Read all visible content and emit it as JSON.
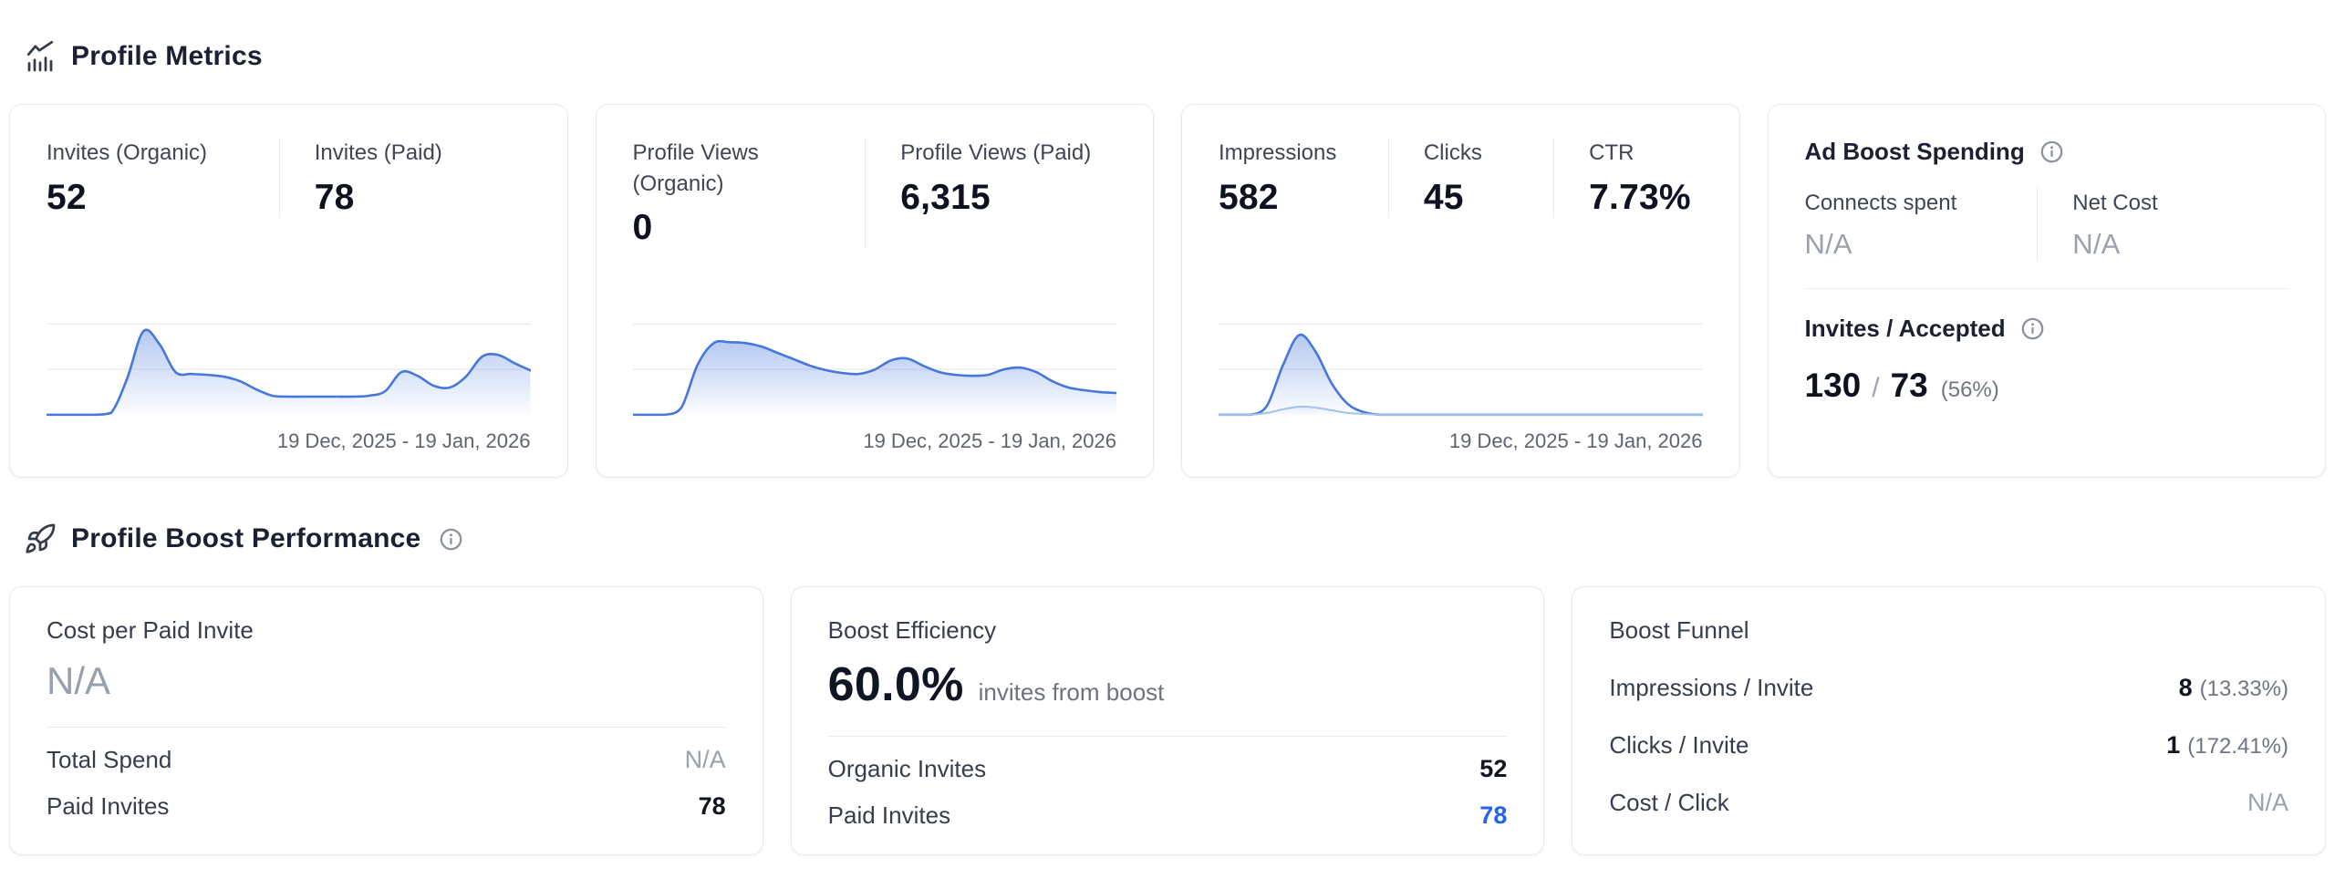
{
  "colors": {
    "accent_blue": "#2563eb",
    "spark_line": "#4677dc",
    "muted": "#9aa1ac"
  },
  "sections": {
    "profile_metrics": {
      "title": "Profile Metrics"
    },
    "boost_performance": {
      "title": "Profile Boost Performance"
    }
  },
  "cards": {
    "invites": {
      "stats": [
        {
          "label": "Invites (Organic)",
          "value": "52"
        },
        {
          "label": "Invites (Paid)",
          "value": "78"
        }
      ]
    },
    "profile_views": {
      "stats": [
        {
          "label": "Profile Views (Organic)",
          "value": "0"
        },
        {
          "label": "Profile Views (Paid)",
          "value": "6,315"
        }
      ]
    },
    "impressions": {
      "stats": [
        {
          "label": "Impressions",
          "value": "582"
        },
        {
          "label": "Clicks",
          "value": "45"
        },
        {
          "label": "CTR",
          "value": "7.73%"
        }
      ]
    },
    "ad_boost": {
      "title": "Ad Boost Spending",
      "stats": [
        {
          "label": "Connects spent",
          "value": "N/A"
        },
        {
          "label": "Net Cost",
          "value": "N/A"
        }
      ],
      "invites_accepted": {
        "title": "Invites / Accepted",
        "invites": "130",
        "separator": "/",
        "accepted": "73",
        "rate": "(56%)"
      }
    },
    "cost_per_paid_invite": {
      "title": "Cost per Paid Invite",
      "value": "N/A",
      "rows": [
        {
          "label": "Total Spend",
          "value": "N/A"
        },
        {
          "label": "Paid Invites",
          "value": "78"
        }
      ]
    },
    "boost_efficiency": {
      "title": "Boost Efficiency",
      "value": "60.0%",
      "suffix": "invites from boost",
      "rows": [
        {
          "label": "Organic Invites",
          "value": "52"
        },
        {
          "label": "Paid Invites",
          "value": "78"
        }
      ]
    },
    "boost_funnel": {
      "title": "Boost Funnel",
      "rows": [
        {
          "label": "Impressions / Invite",
          "value": "8",
          "pct": "(13.33%)"
        },
        {
          "label": "Clicks / Invite",
          "value": "1",
          "pct": "(172.41%)"
        },
        {
          "label": "Cost / Click",
          "value": "N/A",
          "pct": ""
        }
      ]
    }
  },
  "chart_data": [
    {
      "id": "invites-trend",
      "type": "area",
      "title": "Invites (Organic + Paid) daily trend",
      "x_label": "19 Dec, 2025 - 19 Jan, 2026",
      "y_unit": "relative-height-0-100",
      "grid": true,
      "gridlines": [
        50,
        100
      ],
      "series": [
        {
          "name": "Invites",
          "color": "#4677dc",
          "fill_opacity": 0.4,
          "stroke_width": 2.6,
          "values": [
            0,
            0,
            0,
            0,
            2,
            40,
            92,
            78,
            47,
            45,
            44,
            42,
            37,
            28,
            21,
            20,
            20,
            20,
            20,
            20,
            21,
            26,
            47,
            43,
            32,
            30,
            42,
            64,
            66,
            57,
            49
          ]
        }
      ]
    },
    {
      "id": "profile-views-trend",
      "type": "area",
      "title": "Profile Views daily trend",
      "x_label": "19 Dec, 2025 - 19 Jan, 2026",
      "y_unit": "relative-height-0-100",
      "grid": true,
      "gridlines": [
        50,
        100
      ],
      "series": [
        {
          "name": "Profile Views",
          "color": "#4677dc",
          "fill_opacity": 0.4,
          "stroke_width": 2.6,
          "values": [
            0,
            0,
            0,
            8,
            55,
            79,
            80,
            79,
            75,
            68,
            61,
            54,
            49,
            46,
            45,
            50,
            60,
            62,
            54,
            47,
            44,
            43,
            44,
            50,
            52,
            47,
            37,
            30,
            27,
            25,
            24
          ]
        }
      ]
    },
    {
      "id": "impressions-trend",
      "type": "area",
      "title": "Impressions and Clicks daily trend",
      "x_label": "19 Dec, 2025 - 19 Jan, 2026",
      "y_unit": "relative-height-0-100",
      "grid": true,
      "gridlines": [
        50,
        100
      ],
      "series": [
        {
          "name": "Impressions",
          "color": "#4677dc",
          "fill_opacity": 0.4,
          "stroke_width": 2.6,
          "values": [
            0,
            0,
            0,
            10,
            55,
            88,
            70,
            35,
            12,
            3,
            0,
            0,
            0,
            0,
            0,
            0,
            0,
            0,
            0,
            0,
            0,
            0,
            0,
            0,
            0,
            0,
            0,
            0,
            0,
            0,
            0
          ]
        },
        {
          "name": "Clicks",
          "color": "#a5c1ee",
          "fill_opacity": 0.22,
          "stroke_width": 2,
          "values": [
            0,
            0,
            0,
            2,
            6,
            9,
            8,
            5,
            2,
            1,
            0,
            0,
            0,
            0,
            0,
            0,
            0,
            0,
            0,
            0,
            0,
            0,
            0,
            0,
            0,
            0,
            0,
            0,
            0,
            0,
            0
          ]
        }
      ]
    }
  ]
}
